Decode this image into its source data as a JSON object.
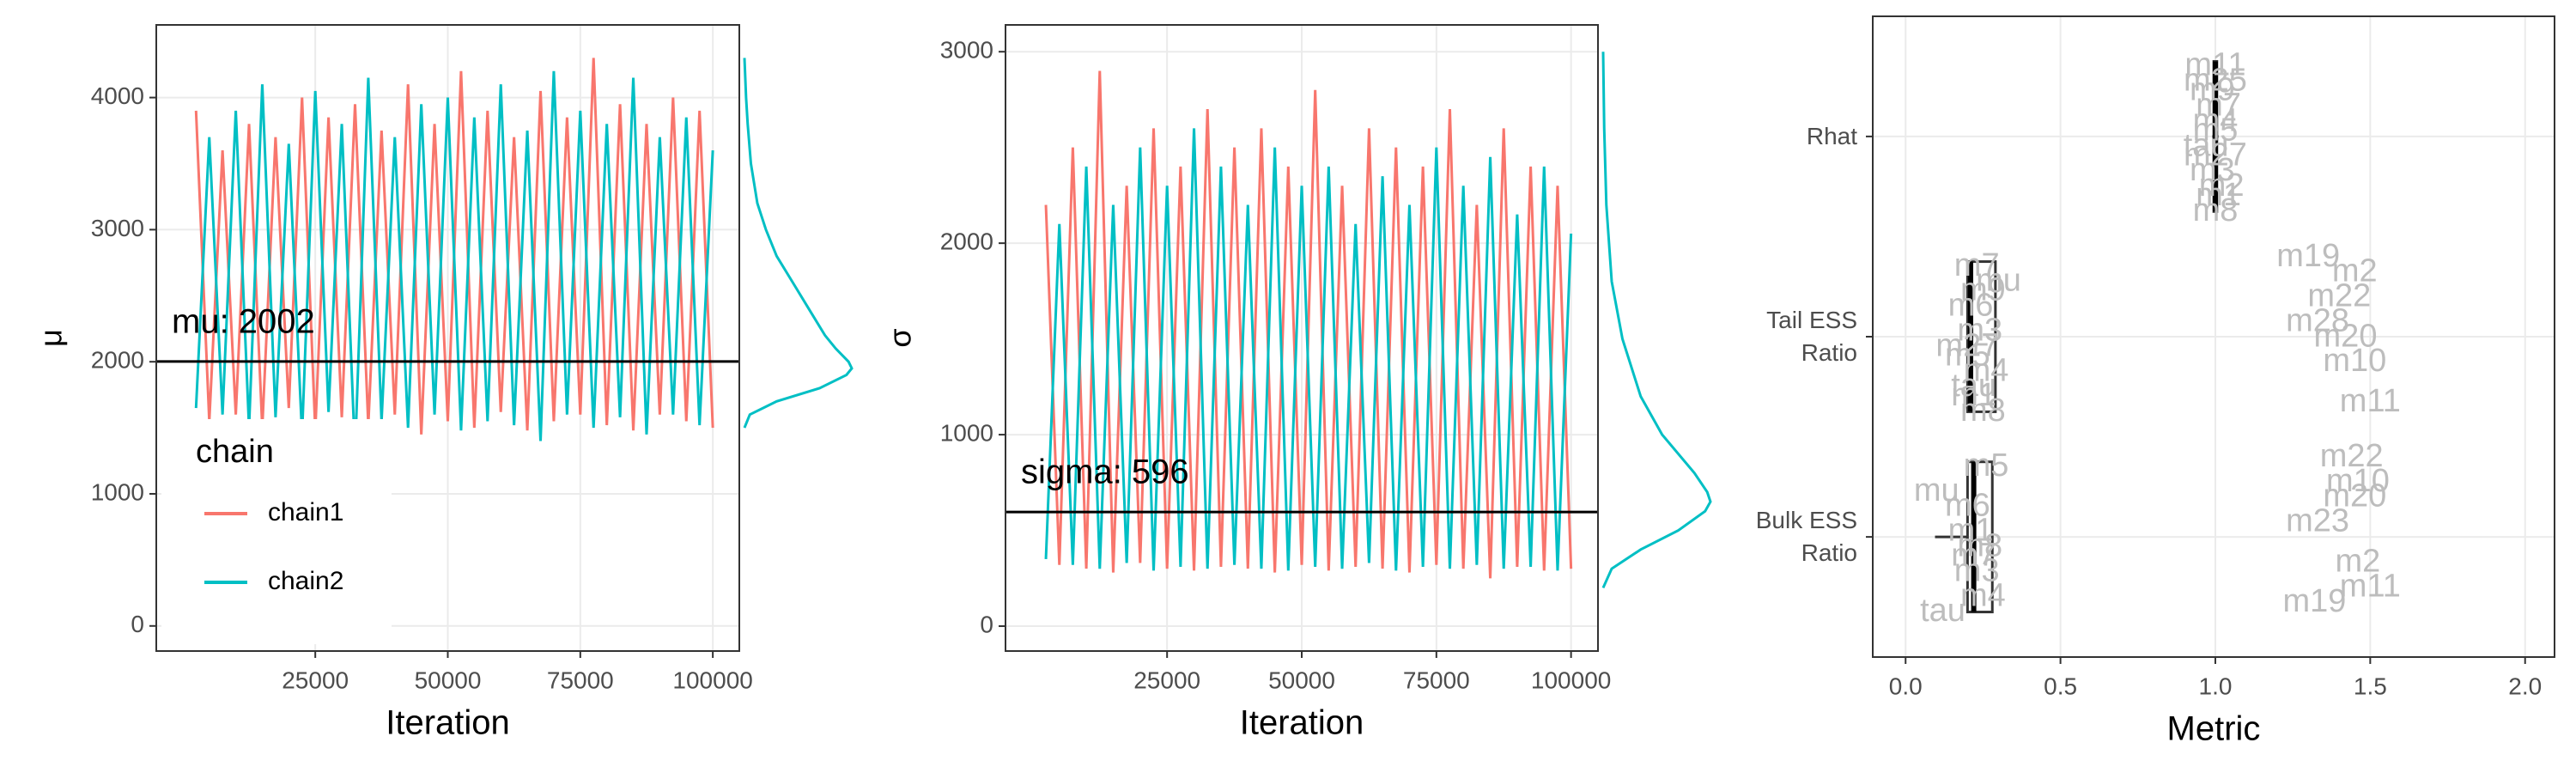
{
  "chart_data": [
    {
      "type": "trace",
      "ylabel": "μ",
      "xlabel": "Iteration",
      "xlim": [
        -5000,
        105000
      ],
      "ylim": [
        -190,
        4550
      ],
      "xticks": [
        25000,
        50000,
        75000,
        100000
      ],
      "yticks": [
        0,
        1000,
        2000,
        3000,
        4000
      ],
      "grid": true,
      "x": [
        2500,
        5000,
        7500,
        10000,
        12500,
        15000,
        17500,
        20000,
        22500,
        25000,
        27500,
        30000,
        32500,
        35000,
        37500,
        40000,
        42500,
        45000,
        47500,
        50000,
        52500,
        55000,
        57500,
        60000,
        62500,
        65000,
        67500,
        70000,
        72500,
        75000,
        77500,
        80000,
        82500,
        85000,
        87500,
        90000,
        92500,
        95000,
        97500,
        100000
      ],
      "series": [
        {
          "name": "chain1",
          "color": "#F8766D",
          "values": [
            3900,
            1550,
            3600,
            1600,
            3800,
            1500,
            3700,
            1650,
            4000,
            1480,
            3850,
            1580,
            3950,
            1520,
            3750,
            1600,
            4100,
            1450,
            3800,
            1550,
            4200,
            1500,
            3900,
            1620,
            3700,
            1480,
            4050,
            1550,
            3850,
            1600,
            4300,
            1520,
            3950,
            1480,
            3800,
            1600,
            4000,
            1550,
            3900,
            1500
          ]
        },
        {
          "name": "chain2",
          "color": "#00BFC4",
          "values": [
            1650,
            3700,
            1600,
            3900,
            1500,
            4100,
            1580,
            3650,
            1450,
            4050,
            1620,
            3800,
            1300,
            4150,
            1550,
            3700,
            1500,
            3950,
            1600,
            4000,
            1480,
            3850,
            1550,
            4100,
            1520,
            3750,
            1400,
            4200,
            1600,
            3900,
            1500,
            3800,
            1580,
            4150,
            1450,
            3700,
            1600,
            3850,
            1520,
            3600
          ]
        }
      ],
      "hline": 2002,
      "annotation": "mu: 2002",
      "density": {
        "y": [
          1500,
          1600,
          1700,
          1800,
          1900,
          1950,
          2000,
          2100,
          2200,
          2400,
          2600,
          2800,
          3000,
          3200,
          3500,
          3800,
          4000,
          4300
        ],
        "values": [
          0,
          0.05,
          0.3,
          0.7,
          0.95,
          1.0,
          0.97,
          0.85,
          0.75,
          0.6,
          0.45,
          0.3,
          0.2,
          0.12,
          0.06,
          0.03,
          0.015,
          0
        ]
      },
      "legend": {
        "title": "chain",
        "position": "bottom-left"
      }
    },
    {
      "type": "trace",
      "ylabel": "σ",
      "xlabel": "Iteration",
      "xlim": [
        -5000,
        105000
      ],
      "ylim": [
        -130,
        3140
      ],
      "xticks": [
        25000,
        50000,
        75000,
        100000
      ],
      "yticks": [
        0,
        1000,
        2000,
        3000
      ],
      "grid": true,
      "x": [
        2500,
        5000,
        7500,
        10000,
        12500,
        15000,
        17500,
        20000,
        22500,
        25000,
        27500,
        30000,
        32500,
        35000,
        37500,
        40000,
        42500,
        45000,
        47500,
        50000,
        52500,
        55000,
        57500,
        60000,
        62500,
        65000,
        67500,
        70000,
        72500,
        75000,
        77500,
        80000,
        82500,
        85000,
        87500,
        90000,
        92500,
        95000,
        97500,
        100000
      ],
      "series": [
        {
          "name": "chain1",
          "color": "#F8766D",
          "values": [
            2200,
            320,
            2500,
            300,
            2900,
            280,
            2300,
            330,
            2600,
            300,
            2400,
            290,
            2700,
            310,
            2500,
            300,
            2600,
            280,
            2400,
            320,
            2800,
            290,
            2300,
            310,
            2600,
            300,
            2500,
            280,
            2400,
            320,
            2700,
            300,
            2200,
            250,
            2600,
            310,
            2400,
            290,
            2300,
            300
          ]
        },
        {
          "name": "chain2",
          "color": "#00BFC4",
          "values": [
            350,
            2100,
            320,
            2400,
            300,
            2200,
            330,
            2500,
            290,
            2300,
            310,
            2600,
            300,
            2400,
            320,
            2200,
            300,
            2500,
            290,
            2300,
            310,
            2400,
            300,
            2100,
            330,
            2350,
            290,
            2200,
            310,
            2500,
            300,
            2300,
            320,
            2450,
            300,
            2150,
            310,
            2400,
            290,
            2050
          ]
        }
      ],
      "hline": 596,
      "annotation": "sigma: 596",
      "density": {
        "y": [
          200,
          300,
          400,
          500,
          600,
          650,
          700,
          800,
          1000,
          1200,
          1500,
          1800,
          2200,
          2600,
          3000
        ],
        "values": [
          0,
          0.08,
          0.35,
          0.7,
          0.95,
          1.0,
          0.97,
          0.85,
          0.55,
          0.35,
          0.18,
          0.08,
          0.03,
          0.01,
          0
        ]
      }
    },
    {
      "type": "boxplot",
      "xlabel": "Metric",
      "xlim": [
        -0.106,
        2.095
      ],
      "xticks": [
        {
          "value": 0,
          "label": "0.0"
        },
        0.5,
        {
          "value": 1,
          "label": "1.0"
        },
        1.5,
        {
          "value": 2,
          "label": "2.0"
        }
      ],
      "grid": true,
      "categories": [
        "Rhat",
        "Tail ESS Ratio",
        "Bulk ESS Ratio"
      ],
      "boxes": [
        {
          "min": 0.99,
          "q1": 0.995,
          "median": 1.0,
          "q3": 1.005,
          "max": 1.01
        },
        {
          "min": 0.2,
          "q1": 0.2,
          "median": 0.21,
          "q3": 0.29,
          "max": 0.29
        },
        {
          "min": 0.095,
          "q1": 0.2,
          "median": 0.22,
          "q3": 0.28,
          "max": 0.28
        }
      ],
      "points": [
        [
          {
            "label": "m27",
            "value": 1.0
          },
          {
            "label": "m9",
            "value": 0.99
          },
          {
            "label": "m1",
            "value": 1.01
          },
          {
            "label": "m5",
            "value": 1.0
          },
          {
            "label": "m11",
            "value": 1.0
          },
          {
            "label": "m3",
            "value": 0.99
          },
          {
            "label": "m7",
            "value": 1.01
          },
          {
            "label": "m8",
            "value": 1.0
          },
          {
            "label": "tau",
            "value": 0.97
          },
          {
            "label": "m25",
            "value": 1.0
          },
          {
            "label": "m2",
            "value": 1.02
          },
          {
            "label": "m4",
            "value": 1.0
          }
        ],
        [
          {
            "label": "m5",
            "value": 0.2
          },
          {
            "label": "m9",
            "value": 0.25
          },
          {
            "label": "m1",
            "value": 0.22
          },
          {
            "label": "m3",
            "value": 0.24
          },
          {
            "label": "m7",
            "value": 0.23
          },
          {
            "label": "m4",
            "value": 0.26
          },
          {
            "label": "m6",
            "value": 0.21
          },
          {
            "label": "m8",
            "value": 0.25
          },
          {
            "label": "m27",
            "value": 0.2
          },
          {
            "label": "mu",
            "value": 0.3
          },
          {
            "label": "tau",
            "value": 0.22
          },
          {
            "label": "m28",
            "value": 1.33
          },
          {
            "label": "m19",
            "value": 1.3
          },
          {
            "label": "m10",
            "value": 1.45
          },
          {
            "label": "m22",
            "value": 1.4
          },
          {
            "label": "m11",
            "value": 1.5
          },
          {
            "label": "m20",
            "value": 1.42
          },
          {
            "label": "m2",
            "value": 1.45
          }
        ],
        [
          {
            "label": "m7",
            "value": 0.22
          },
          {
            "label": "mu",
            "value": 0.1
          },
          {
            "label": "m4",
            "value": 0.25
          },
          {
            "label": "m1",
            "value": 0.21
          },
          {
            "label": "m5",
            "value": 0.26
          },
          {
            "label": "m3",
            "value": 0.23
          },
          {
            "label": "m6",
            "value": 0.2
          },
          {
            "label": "tau",
            "value": 0.12
          },
          {
            "label": "m8",
            "value": 0.24
          },
          {
            "label": "m10",
            "value": 1.46
          },
          {
            "label": "m11",
            "value": 1.5
          },
          {
            "label": "m23",
            "value": 1.33
          },
          {
            "label": "m22",
            "value": 1.44
          },
          {
            "label": "m2",
            "value": 1.46
          },
          {
            "label": "m20",
            "value": 1.45
          },
          {
            "label": "m19",
            "value": 1.32
          }
        ]
      ]
    }
  ]
}
